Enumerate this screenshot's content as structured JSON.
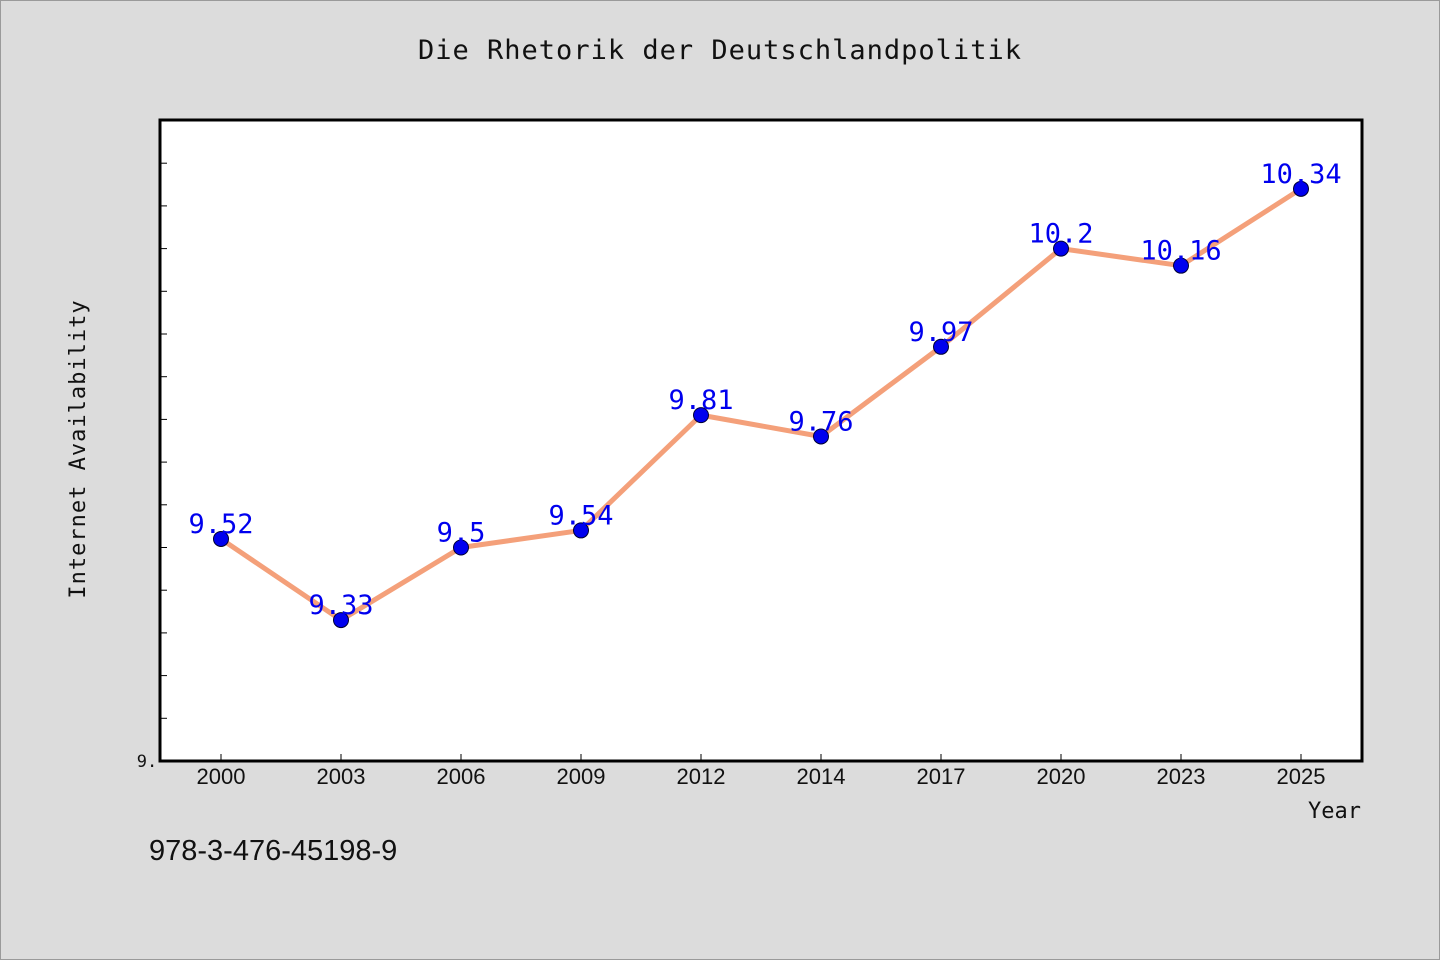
{
  "chart_data": {
    "type": "line",
    "title": "Die Rhetorik der Deutschlandpolitik",
    "xlabel": "Year",
    "ylabel": "Internet Availability",
    "categories": [
      "2000",
      "2003",
      "2006",
      "2009",
      "2012",
      "2014",
      "2017",
      "2020",
      "2023",
      "2025"
    ],
    "series": [
      {
        "values": [
          9.52,
          9.33,
          9.5,
          9.54,
          9.81,
          9.76,
          9.97,
          10.2,
          10.16,
          10.34
        ]
      }
    ],
    "data_labels": [
      "9.52",
      "9.33",
      "9.5",
      "9.54",
      "9.81",
      "9.76",
      "9.97",
      "10.2",
      "10.16",
      "10.34"
    ],
    "y_tick_label": "9.",
    "ylim": [
      9.0,
      10.5
    ],
    "y_minor_tick_step": 0.1,
    "grid": false,
    "line_color": "#f4a07a",
    "marker_color": "#0000ee",
    "label_color": "#0000ee",
    "plot_background": "#ffffff",
    "page_background": "#dcdcdc"
  },
  "footer": {
    "code": "978-3-476-45198-9"
  }
}
